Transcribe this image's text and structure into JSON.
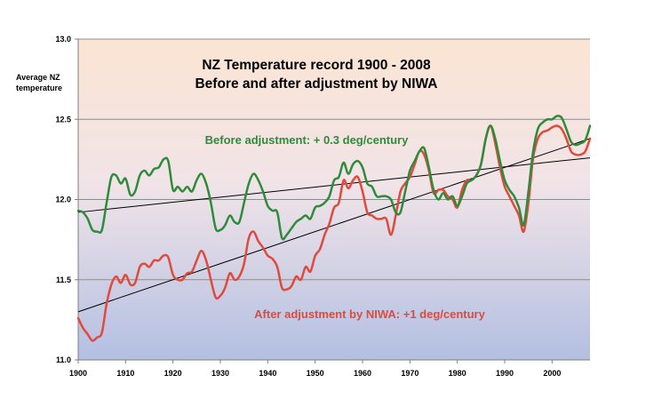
{
  "chart_data": {
    "type": "line",
    "title_line1": "NZ Temperature record 1900 - 2008",
    "title_line2": "Before and after adjustment by NIWA",
    "ylabel_line1": "Average NZ",
    "ylabel_line2": "temperature",
    "xlim": [
      1900,
      2008
    ],
    "ylim": [
      11.0,
      13.0
    ],
    "x_ticks": [
      1900,
      1910,
      1920,
      1930,
      1940,
      1950,
      1960,
      1970,
      1980,
      1990,
      2000
    ],
    "y_ticks": [
      11.0,
      11.5,
      12.0,
      12.5,
      13.0
    ],
    "y_tick_labels": [
      "11.0",
      "11.5",
      "12.0",
      "12.5",
      "13.0"
    ],
    "grid": true,
    "background_top_color": "#fbe4d2",
    "background_bottom_color": "#b3bfe2",
    "series": [
      {
        "color": "#2e8b3a",
        "annotation": "Before adjustment: + 0.3 deg/century",
        "x": [
          1900,
          1901,
          1902,
          1903,
          1904,
          1905,
          1906,
          1907,
          1908,
          1909,
          1910,
          1911,
          1912,
          1913,
          1914,
          1915,
          1916,
          1917,
          1918,
          1919,
          1920,
          1921,
          1922,
          1923,
          1924,
          1925,
          1926,
          1927,
          1928,
          1929,
          1930,
          1931,
          1932,
          1933,
          1934,
          1935,
          1936,
          1937,
          1938,
          1939,
          1940,
          1941,
          1942,
          1943,
          1944,
          1945,
          1946,
          1947,
          1948,
          1949,
          1950,
          1951,
          1952,
          1953,
          1954,
          1955,
          1956,
          1957,
          1958,
          1959,
          1960,
          1961,
          1962,
          1963,
          1964,
          1965,
          1966,
          1967,
          1968,
          1969,
          1970,
          1971,
          1972,
          1973,
          1974,
          1975,
          1976,
          1977,
          1978,
          1979,
          1980,
          1981,
          1982,
          1983,
          1984,
          1985,
          1986,
          1987,
          1988,
          1989,
          1990,
          1991,
          1992,
          1993,
          1994,
          1995,
          1996,
          1997,
          1998,
          1999,
          2000,
          2001,
          2002,
          2003,
          2004,
          2005,
          2006,
          2007,
          2008
        ],
        "values": [
          11.93,
          11.92,
          11.88,
          11.81,
          11.8,
          11.81,
          11.98,
          12.14,
          12.15,
          12.1,
          12.13,
          12.03,
          12.05,
          12.15,
          12.18,
          12.15,
          12.19,
          12.2,
          12.25,
          12.24,
          12.06,
          12.08,
          12.05,
          12.08,
          12.05,
          12.12,
          12.16,
          12.1,
          11.98,
          11.82,
          11.81,
          11.84,
          11.9,
          11.86,
          11.86,
          11.98,
          12.1,
          12.16,
          12.12,
          12.05,
          11.96,
          11.93,
          11.92,
          11.76,
          11.78,
          11.82,
          11.86,
          11.88,
          11.9,
          11.88,
          11.95,
          11.96,
          11.98,
          12.02,
          12.12,
          12.14,
          12.23,
          12.16,
          12.22,
          12.24,
          12.2,
          12.1,
          12.08,
          12.02,
          12.02,
          12.02,
          12.0,
          11.92,
          11.92,
          12.05,
          12.18,
          12.24,
          12.3,
          12.32,
          12.2,
          12.06,
          12.0,
          12.04,
          12.0,
          12.02,
          11.96,
          12.02,
          12.1,
          12.12,
          12.15,
          12.22,
          12.38,
          12.46,
          12.38,
          12.24,
          12.12,
          12.06,
          12.02,
          11.95,
          11.84,
          12.05,
          12.3,
          12.44,
          12.48,
          12.5,
          12.5,
          12.52,
          12.51,
          12.44,
          12.36,
          12.34,
          12.35,
          12.37,
          12.46
        ]
      },
      {
        "color": "#e04a3c",
        "annotation": "After adjustment by NIWA: +1 deg/century",
        "x": [
          1900,
          1901,
          1902,
          1903,
          1904,
          1905,
          1906,
          1907,
          1908,
          1909,
          1910,
          1911,
          1912,
          1913,
          1914,
          1915,
          1916,
          1917,
          1918,
          1919,
          1920,
          1921,
          1922,
          1923,
          1924,
          1925,
          1926,
          1927,
          1928,
          1929,
          1930,
          1931,
          1932,
          1933,
          1934,
          1935,
          1936,
          1937,
          1938,
          1939,
          1940,
          1941,
          1942,
          1943,
          1944,
          1945,
          1946,
          1947,
          1948,
          1949,
          1950,
          1951,
          1952,
          1953,
          1954,
          1955,
          1956,
          1957,
          1958,
          1959,
          1960,
          1961,
          1962,
          1963,
          1964,
          1965,
          1966,
          1967,
          1968,
          1969,
          1970,
          1971,
          1972,
          1973,
          1974,
          1975,
          1976,
          1977,
          1978,
          1979,
          1980,
          1981,
          1982,
          1983,
          1984,
          1985,
          1986,
          1987,
          1988,
          1989,
          1990,
          1991,
          1992,
          1993,
          1994,
          1995,
          1996,
          1997,
          1998,
          1999,
          2000,
          2001,
          2002,
          2003,
          2004,
          2005,
          2006,
          2007,
          2008
        ],
        "values": [
          11.26,
          11.2,
          11.16,
          11.12,
          11.14,
          11.17,
          11.35,
          11.47,
          11.52,
          11.48,
          11.53,
          11.47,
          11.48,
          11.58,
          11.6,
          11.58,
          11.62,
          11.62,
          11.65,
          11.64,
          11.53,
          11.5,
          11.5,
          11.54,
          11.55,
          11.62,
          11.68,
          11.62,
          11.5,
          11.39,
          11.4,
          11.45,
          11.54,
          11.5,
          11.52,
          11.6,
          11.76,
          11.8,
          11.74,
          11.7,
          11.65,
          11.63,
          11.58,
          11.45,
          11.44,
          11.46,
          11.52,
          11.5,
          11.58,
          11.55,
          11.65,
          11.69,
          11.78,
          11.85,
          11.95,
          11.98,
          12.12,
          12.07,
          12.12,
          12.14,
          12.05,
          11.92,
          11.9,
          11.88,
          11.88,
          11.88,
          11.78,
          11.9,
          12.05,
          12.1,
          12.14,
          12.22,
          12.3,
          12.28,
          12.18,
          12.04,
          12.06,
          12.06,
          12.02,
          12.0,
          11.95,
          12.06,
          12.12,
          12.12,
          12.15,
          12.22,
          12.38,
          12.46,
          12.35,
          12.2,
          12.08,
          12.02,
          11.96,
          11.9,
          11.8,
          11.98,
          12.26,
          12.38,
          12.42,
          12.43,
          12.45,
          12.46,
          12.44,
          12.38,
          12.3,
          12.28,
          12.28,
          12.3,
          12.38
        ]
      }
    ],
    "trendlines": [
      {
        "x": [
          1900,
          2008
        ],
        "values": [
          11.92,
          12.26
        ],
        "color": "#000000"
      },
      {
        "x": [
          1900,
          2008
        ],
        "values": [
          11.3,
          12.38
        ],
        "color": "#000000"
      }
    ]
  }
}
